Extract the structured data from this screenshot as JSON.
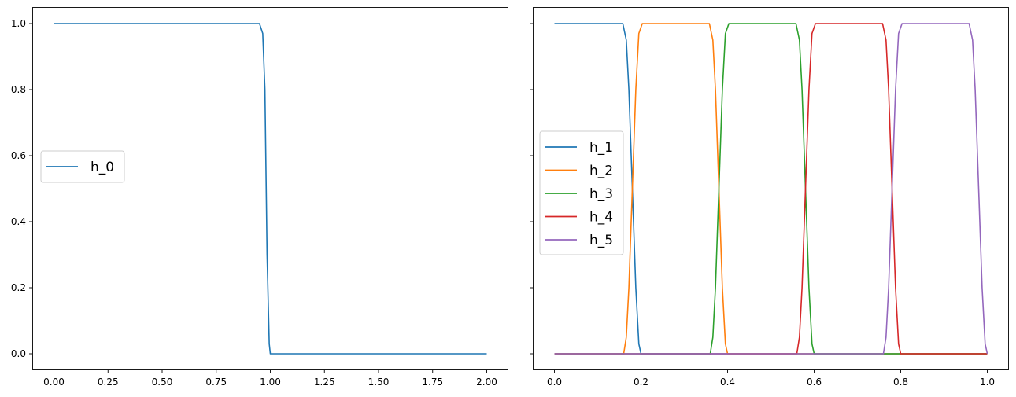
{
  "chart_data": [
    {
      "type": "line",
      "xlim": [
        -0.1,
        2.1
      ],
      "ylim": [
        -0.05,
        1.05
      ],
      "x_ticks": [
        "0.00",
        "0.25",
        "0.50",
        "0.75",
        "1.00",
        "1.25",
        "1.50",
        "1.75",
        "2.00"
      ],
      "y_ticks": [
        "0.0",
        "0.2",
        "0.4",
        "0.6",
        "0.8",
        "1.0"
      ],
      "legend_position": "center-left",
      "grid": false,
      "series": [
        {
          "name": "h_0",
          "color": "#1f77b4",
          "points": [
            [
              0.0,
              1.0
            ],
            [
              0.95,
              1.0
            ],
            [
              0.965,
              0.97
            ],
            [
              0.975,
              0.8
            ],
            [
              0.985,
              0.3
            ],
            [
              0.995,
              0.03
            ],
            [
              1.0,
              0.0
            ],
            [
              2.0,
              0.0
            ]
          ]
        }
      ]
    },
    {
      "type": "line",
      "xlim": [
        -0.05,
        1.05
      ],
      "ylim": [
        -0.05,
        1.05
      ],
      "x_ticks": [
        "0.0",
        "0.2",
        "0.4",
        "0.6",
        "0.8",
        "1.0"
      ],
      "y_ticks": [],
      "legend_position": "center-left",
      "grid": false,
      "series": [
        {
          "name": "h_1",
          "color": "#1f77b4",
          "points": [
            [
              0.0,
              1.0
            ],
            [
              0.158,
              1.0
            ],
            [
              0.166,
              0.95
            ],
            [
              0.172,
              0.8
            ],
            [
              0.18,
              0.5
            ],
            [
              0.188,
              0.2
            ],
            [
              0.195,
              0.03
            ],
            [
              0.2,
              0.0
            ],
            [
              1.0,
              0.0
            ]
          ]
        },
        {
          "name": "h_2",
          "color": "#ff7f0e",
          "points": [
            [
              0.0,
              0.0
            ],
            [
              0.16,
              0.0
            ],
            [
              0.166,
              0.05
            ],
            [
              0.172,
              0.2
            ],
            [
              0.18,
              0.5
            ],
            [
              0.188,
              0.8
            ],
            [
              0.195,
              0.97
            ],
            [
              0.203,
              1.0
            ],
            [
              0.358,
              1.0
            ],
            [
              0.366,
              0.95
            ],
            [
              0.372,
              0.8
            ],
            [
              0.38,
              0.5
            ],
            [
              0.388,
              0.2
            ],
            [
              0.395,
              0.03
            ],
            [
              0.4,
              0.0
            ],
            [
              1.0,
              0.0
            ]
          ]
        },
        {
          "name": "h_3",
          "color": "#2ca02c",
          "points": [
            [
              0.0,
              0.0
            ],
            [
              0.36,
              0.0
            ],
            [
              0.366,
              0.05
            ],
            [
              0.372,
              0.2
            ],
            [
              0.38,
              0.5
            ],
            [
              0.388,
              0.8
            ],
            [
              0.395,
              0.97
            ],
            [
              0.403,
              1.0
            ],
            [
              0.558,
              1.0
            ],
            [
              0.566,
              0.95
            ],
            [
              0.572,
              0.8
            ],
            [
              0.58,
              0.5
            ],
            [
              0.588,
              0.2
            ],
            [
              0.595,
              0.03
            ],
            [
              0.6,
              0.0
            ],
            [
              1.0,
              0.0
            ]
          ]
        },
        {
          "name": "h_4",
          "color": "#d62728",
          "points": [
            [
              0.0,
              0.0
            ],
            [
              0.56,
              0.0
            ],
            [
              0.566,
              0.05
            ],
            [
              0.572,
              0.2
            ],
            [
              0.58,
              0.5
            ],
            [
              0.588,
              0.8
            ],
            [
              0.595,
              0.97
            ],
            [
              0.603,
              1.0
            ],
            [
              0.758,
              1.0
            ],
            [
              0.766,
              0.95
            ],
            [
              0.772,
              0.8
            ],
            [
              0.78,
              0.5
            ],
            [
              0.788,
              0.2
            ],
            [
              0.795,
              0.03
            ],
            [
              0.8,
              0.0
            ],
            [
              1.0,
              0.0
            ]
          ]
        },
        {
          "name": "h_5",
          "color": "#9467bd",
          "points": [
            [
              0.0,
              0.0
            ],
            [
              0.76,
              0.0
            ],
            [
              0.766,
              0.05
            ],
            [
              0.772,
              0.2
            ],
            [
              0.78,
              0.5
            ],
            [
              0.788,
              0.8
            ],
            [
              0.795,
              0.97
            ],
            [
              0.803,
              1.0
            ],
            [
              0.958,
              1.0
            ],
            [
              0.966,
              0.95
            ],
            [
              0.972,
              0.8
            ],
            [
              0.98,
              0.5
            ],
            [
              0.988,
              0.2
            ],
            [
              0.995,
              0.03
            ],
            [
              1.0,
              0.0
            ]
          ]
        }
      ]
    }
  ]
}
